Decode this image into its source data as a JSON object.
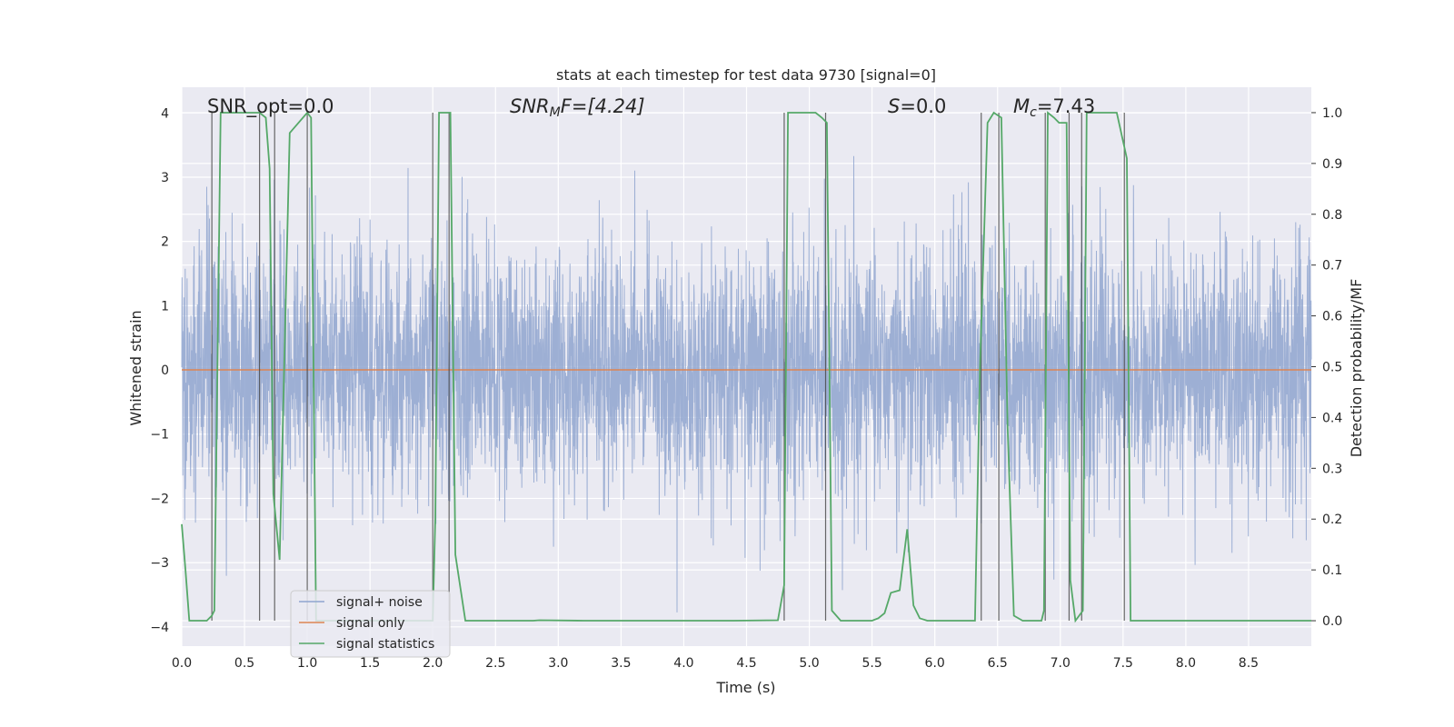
{
  "chart_data": {
    "type": "line",
    "title": "stats at each timestep for test data 9730 [signal=0]",
    "xlabel": "Time (s)",
    "ylabel": "Whitened strain",
    "ylabel_right": "Detection probability/MF",
    "xlim": [
      0.0,
      9.0
    ],
    "ylim": [
      -4.3,
      4.4
    ],
    "ylim_right": [
      -0.05,
      1.05
    ],
    "xticks": [
      "0.0",
      "0.5",
      "1.0",
      "1.5",
      "2.0",
      "2.5",
      "3.0",
      "3.5",
      "4.0",
      "4.5",
      "5.0",
      "5.5",
      "6.0",
      "6.5",
      "7.0",
      "7.5",
      "8.0",
      "8.5"
    ],
    "xtick_values": [
      0,
      0.5,
      1,
      1.5,
      2,
      2.5,
      3,
      3.5,
      4,
      4.5,
      5,
      5.5,
      6,
      6.5,
      7,
      7.5,
      8,
      8.5
    ],
    "yticks": [
      "−4",
      "−3",
      "−2",
      "−1",
      "0",
      "1",
      "2",
      "3",
      "4"
    ],
    "ytick_values": [
      -4,
      -3,
      -2,
      -1,
      0,
      1,
      2,
      3,
      4
    ],
    "yticks_right": [
      "0.0",
      "0.1",
      "0.2",
      "0.3",
      "0.4",
      "0.5",
      "0.6",
      "0.7",
      "0.8",
      "0.9",
      "1.0"
    ],
    "ytick_right_values": [
      0,
      0.1,
      0.2,
      0.3,
      0.4,
      0.5,
      0.6,
      0.7,
      0.8,
      0.9,
      1.0
    ],
    "annotations": {
      "snr_opt": "SNR_opt=0.0",
      "snr_mf_symbol": "SNR",
      "snr_mf_sub": "M",
      "snr_mf_rest": "F=[4.24]",
      "s_symbol": "S",
      "s_rest": "=0.0",
      "mc_symbol": "M",
      "mc_sub": "c",
      "mc_rest": "=7.43"
    },
    "legend": {
      "position": "lower-left",
      "entries": [
        {
          "label": "signal+ noise",
          "color": "#8fa5cf"
        },
        {
          "label": "signal only",
          "color": "#dd8452"
        },
        {
          "label": "signal statistics",
          "color": "#55a868"
        }
      ]
    },
    "series": [
      {
        "name": "signal+ noise",
        "axis": "left",
        "description": "whitened strain noise ~ N(0,1), t in [0,9] s",
        "std": 1.0,
        "color": "#8fa5cf"
      },
      {
        "name": "signal only",
        "axis": "left",
        "x": [
          0,
          9
        ],
        "y": [
          0,
          0
        ],
        "color": "#dd8452"
      },
      {
        "name": "signal statistics",
        "axis": "right",
        "color": "#55a868",
        "x": [
          0.0,
          0.03,
          0.06,
          0.2,
          0.24,
          0.26,
          0.31,
          0.62,
          0.67,
          0.7,
          0.73,
          0.78,
          0.86,
          1.0,
          1.03,
          1.07,
          1.15,
          1.25,
          1.4,
          1.6,
          1.8,
          2.0,
          2.02,
          2.05,
          2.08,
          2.11,
          2.14,
          2.18,
          2.26,
          2.5,
          2.8,
          2.85,
          3.2,
          3.6,
          4.0,
          4.4,
          4.75,
          4.8,
          4.83,
          4.88,
          4.95,
          5.05,
          5.1,
          5.14,
          5.18,
          5.25,
          5.4,
          5.5,
          5.55,
          5.6,
          5.65,
          5.72,
          5.78,
          5.83,
          5.88,
          5.94,
          6.0,
          6.2,
          6.32,
          6.36,
          6.42,
          6.47,
          6.53,
          6.58,
          6.63,
          6.7,
          6.79,
          6.85,
          6.87,
          6.9,
          6.95,
          6.99,
          7.05,
          7.08,
          7.12,
          7.15,
          7.18,
          7.21,
          7.25,
          7.45,
          7.53,
          7.56,
          7.65,
          8.0,
          8.5,
          9.0
        ],
        "y": [
          0.19,
          0.1,
          0.0,
          0.0,
          0.01,
          0.02,
          1.0,
          1.0,
          0.99,
          0.89,
          0.25,
          0.12,
          0.96,
          1.0,
          0.99,
          0.0,
          0.0,
          0.0,
          0.0,
          0.0,
          0.0,
          0.0,
          0.2,
          1.0,
          1.0,
          1.0,
          1.0,
          0.13,
          0.0,
          0.0,
          0.0,
          0.001,
          0.0,
          0.0,
          0.0,
          0.0,
          0.001,
          0.07,
          1.0,
          1.0,
          1.0,
          1.0,
          0.99,
          0.98,
          0.02,
          0.0,
          0.0,
          0.0,
          0.005,
          0.015,
          0.055,
          0.06,
          0.18,
          0.03,
          0.005,
          0.0,
          0.0,
          0.0,
          0.0,
          0.5,
          0.98,
          1.0,
          0.99,
          0.38,
          0.01,
          0.0,
          0.0,
          0.0,
          0.02,
          1.0,
          0.99,
          0.98,
          0.98,
          0.08,
          0.0,
          0.01,
          0.02,
          1.0,
          1.0,
          1.0,
          0.91,
          0.0,
          0.0,
          0.0,
          0.0,
          0.0
        ]
      }
    ],
    "vertical_markers_x": [
      0.24,
      0.62,
      0.74,
      1.0,
      2.0,
      2.13,
      4.8,
      5.13,
      6.37,
      6.51,
      6.88,
      7.07,
      7.17,
      7.51
    ]
  }
}
